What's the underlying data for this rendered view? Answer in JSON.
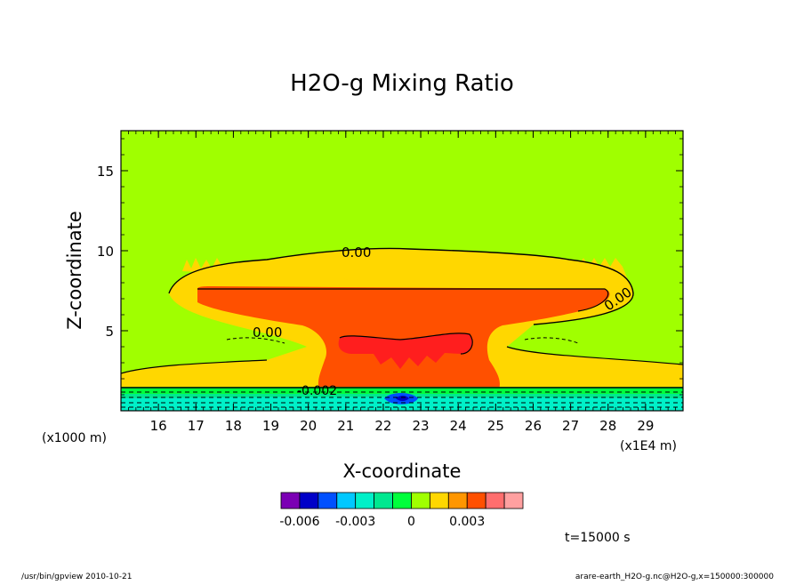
{
  "chart_data": {
    "type": "contour",
    "title": "H2O-g Mixing Ratio",
    "xlabel": "X-coordinate",
    "ylabel": "Z-coordinate",
    "x_unit_left": "(x1000 m)",
    "x_unit_right": "(x1E4 m)",
    "x_ticks": [
      "16",
      "17",
      "18",
      "19",
      "20",
      "21",
      "22",
      "23",
      "24",
      "25",
      "26",
      "27",
      "28",
      "29"
    ],
    "y_ticks": [
      "5",
      "10",
      "15"
    ],
    "xlim": [
      15.0,
      30.0
    ],
    "ylim": [
      0,
      17.5
    ],
    "contour_labels": [
      "0.00",
      "0.00",
      "0.00",
      "-0.002"
    ],
    "colorbar": {
      "colors": [
        "#7b00b4",
        "#0000c8",
        "#0050ff",
        "#00c8ff",
        "#00f0c8",
        "#00e890",
        "#00ff3c",
        "#a0ff00",
        "#ffd700",
        "#ff9600",
        "#ff5000",
        "#ff6e6e",
        "#ffa0a0"
      ],
      "tick_labels": [
        "-0.006",
        "-0.003",
        "0",
        "0.003"
      ]
    },
    "time_label": "t=15000 s"
  },
  "footer": {
    "left": "/usr/bin/gpview   2010-10-21",
    "right": "arare-earth_H2O-g.nc@H2O-g,x=150000:300000"
  }
}
